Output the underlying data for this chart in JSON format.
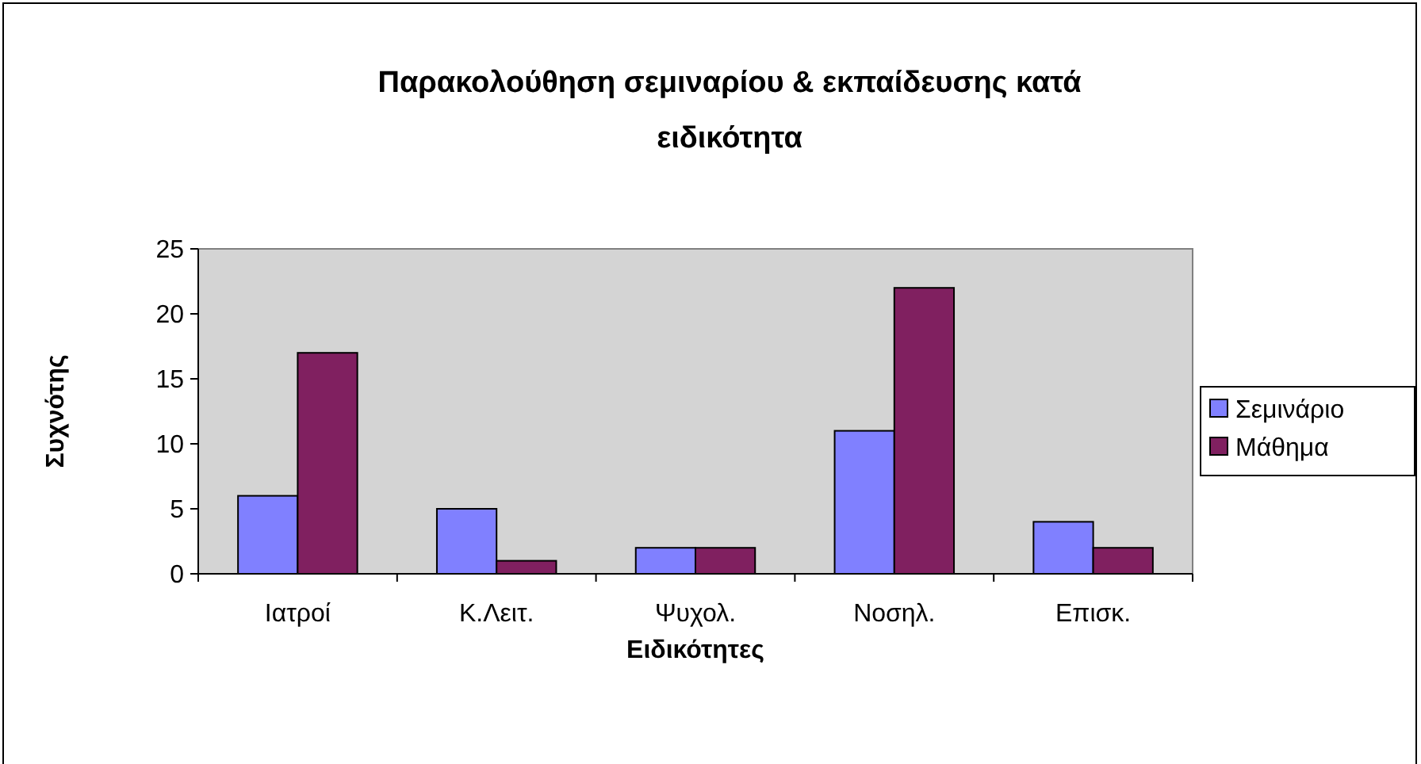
{
  "chart_data": {
    "type": "bar",
    "title": "Παρακολούθηση σεμιναρίου & εκπαίδευσης κατά ειδικότητα",
    "xlabel": "Ειδικότητες",
    "ylabel": "Συχνότης",
    "categories": [
      "Ιατροί",
      "Κ.Λειτ.",
      "Ψυχολ.",
      "Νοσηλ.",
      "Επισκ."
    ],
    "series": [
      {
        "name": "Σεμινάριο",
        "color": "#8080ff",
        "values": [
          6,
          5,
          2,
          11,
          4
        ]
      },
      {
        "name": "Μάθημα",
        "color": "#802060",
        "values": [
          17,
          1,
          2,
          22,
          2
        ]
      }
    ],
    "ylim": [
      0,
      25
    ],
    "yticks": [
      0,
      5,
      10,
      15,
      20,
      25
    ],
    "grid": false,
    "legend": "right"
  }
}
